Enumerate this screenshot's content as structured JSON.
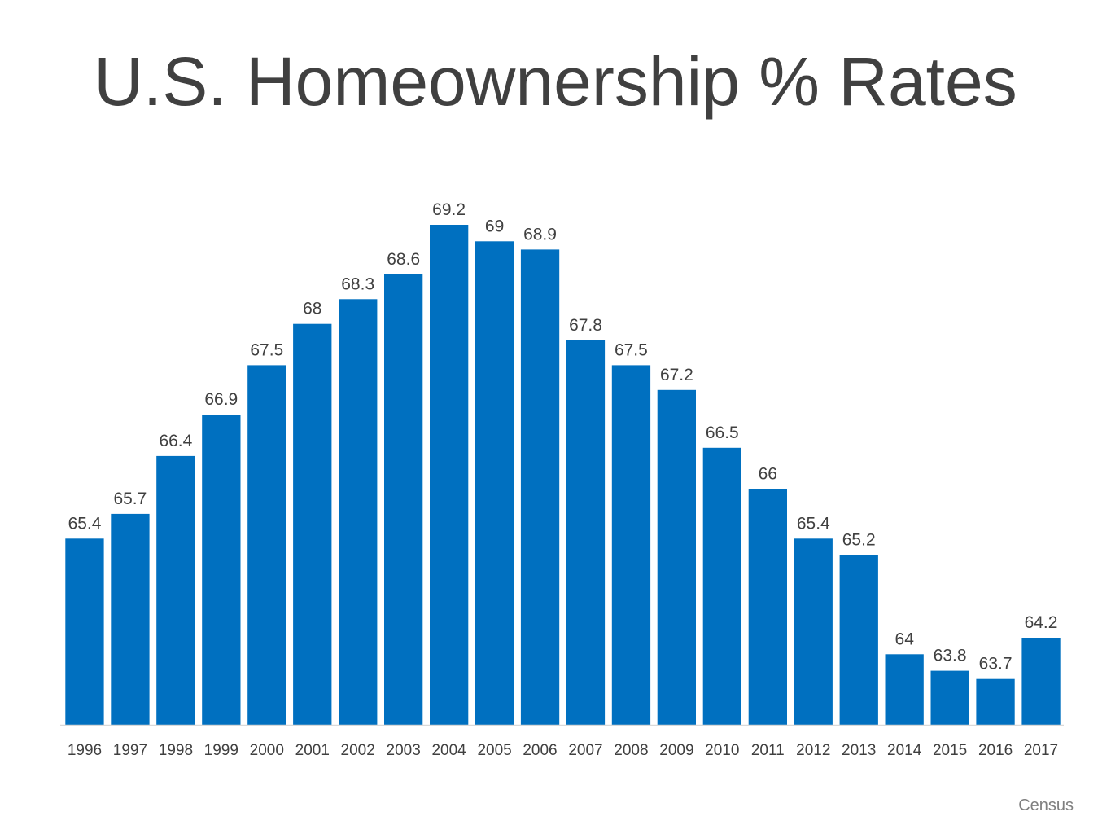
{
  "title": "U.S. Homeownership % Rates",
  "source": "Census",
  "colors": {
    "bar": "#0070C0",
    "text": "#404040",
    "axis": "#d9d9d9",
    "source": "#7f7f7f"
  },
  "chart_data": {
    "type": "bar",
    "title": "U.S. Homeownership % Rates",
    "xlabel": "",
    "ylabel": "",
    "grid": false,
    "legend": "none",
    "categories": [
      "1996",
      "1997",
      "1998",
      "1999",
      "2000",
      "2001",
      "2002",
      "2003",
      "2004",
      "2005",
      "2006",
      "2007",
      "2008",
      "2009",
      "2010",
      "2011",
      "2012",
      "2013",
      "2014",
      "2015",
      "2016",
      "2017"
    ],
    "values": [
      65.4,
      65.7,
      66.4,
      66.9,
      67.5,
      68,
      68.3,
      68.6,
      69.2,
      69,
      68.9,
      67.8,
      67.5,
      67.2,
      66.5,
      66,
      65.4,
      65.2,
      64,
      63.8,
      63.7,
      64.2
    ],
    "data_labels": [
      "65.4",
      "65.7",
      "66.4",
      "66.9",
      "67.5",
      "68",
      "68.3",
      "68.6",
      "69.2",
      "69",
      "68.9",
      "67.8",
      "67.5",
      "67.2",
      "66.5",
      "66",
      "65.4",
      "65.2",
      "64",
      "63.8",
      "63.7",
      "64.2"
    ]
  }
}
